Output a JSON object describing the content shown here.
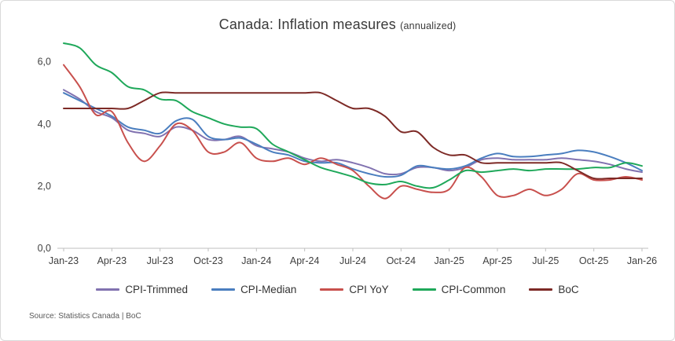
{
  "title": {
    "main": "Canada: Inflation measures",
    "suffix": "(annualized)"
  },
  "source": "Source: Statistics Canada | BoC",
  "chart_data": {
    "type": "line",
    "x": [
      "Jan-23",
      "Feb-23",
      "Mar-23",
      "Apr-23",
      "May-23",
      "Jun-23",
      "Jul-23",
      "Aug-23",
      "Sep-23",
      "Oct-23",
      "Nov-23",
      "Dec-23",
      "Jan-24",
      "Feb-24",
      "Mar-24",
      "Apr-24",
      "May-24",
      "Jun-24",
      "Jul-24",
      "Aug-24",
      "Sep-24",
      "Oct-24",
      "Nov-24",
      "Dec-24",
      "Jan-25",
      "Feb-25",
      "Mar-25",
      "Apr-25",
      "May-25",
      "Jun-25",
      "Jul-25",
      "Aug-25",
      "Sep-25",
      "Oct-25",
      "Nov-25",
      "Dec-25",
      "Jan-26"
    ],
    "x_tick_labels": [
      "Jan-23",
      "Apr-23",
      "Jul-23",
      "Oct-23",
      "Jan-24",
      "Apr-24",
      "Jul-24",
      "Oct-24",
      "Jan-25",
      "Apr-25",
      "Jul-25",
      "Oct-25",
      "Jan-26"
    ],
    "y_ticks": [
      0,
      2,
      4,
      6
    ],
    "y_tick_labels": [
      "0,0",
      "2,0",
      "4,0",
      "6,0"
    ],
    "ylim": [
      0,
      6.7
    ],
    "grid": false,
    "legend_position": "bottom",
    "series": [
      {
        "name": "CPI-Trimmed",
        "color": "#8172b0",
        "values": [
          5.1,
          4.8,
          4.4,
          4.2,
          3.8,
          3.7,
          3.6,
          3.9,
          3.8,
          3.5,
          3.5,
          3.6,
          3.3,
          3.2,
          3.1,
          2.9,
          2.8,
          2.85,
          2.75,
          2.6,
          2.4,
          2.4,
          2.6,
          2.6,
          2.5,
          2.6,
          2.85,
          2.9,
          2.85,
          2.85,
          2.85,
          2.9,
          2.85,
          2.8,
          2.7,
          2.55,
          2.45
        ]
      },
      {
        "name": "CPI-Median",
        "color": "#4a7ebf",
        "values": [
          5.0,
          4.75,
          4.5,
          4.25,
          3.9,
          3.8,
          3.7,
          4.1,
          4.15,
          3.6,
          3.5,
          3.55,
          3.35,
          3.1,
          3.0,
          2.8,
          2.75,
          2.75,
          2.55,
          2.4,
          2.3,
          2.35,
          2.65,
          2.6,
          2.55,
          2.65,
          2.9,
          3.05,
          2.95,
          2.95,
          3.0,
          3.05,
          3.15,
          3.1,
          2.95,
          2.75,
          2.5
        ]
      },
      {
        "name": "CPI YoY",
        "color": "#c8504d",
        "values": [
          5.9,
          5.2,
          4.3,
          4.4,
          3.4,
          2.8,
          3.3,
          4.0,
          3.8,
          3.1,
          3.1,
          3.4,
          2.9,
          2.8,
          2.9,
          2.7,
          2.9,
          2.7,
          2.5,
          2.0,
          1.6,
          2.0,
          1.9,
          1.8,
          1.9,
          2.6,
          2.3,
          1.7,
          1.7,
          1.9,
          1.7,
          1.9,
          2.4,
          2.2,
          2.2,
          2.3,
          2.2
        ]
      },
      {
        "name": "CPI-Common",
        "color": "#1fa85a",
        "values": [
          6.6,
          6.45,
          5.9,
          5.65,
          5.2,
          5.1,
          4.8,
          4.75,
          4.4,
          4.2,
          4.0,
          3.9,
          3.85,
          3.35,
          3.1,
          2.85,
          2.6,
          2.45,
          2.3,
          2.1,
          2.05,
          2.15,
          2.0,
          1.95,
          2.2,
          2.5,
          2.45,
          2.5,
          2.55,
          2.5,
          2.55,
          2.55,
          2.55,
          2.6,
          2.6,
          2.75,
          2.65
        ]
      },
      {
        "name": "BoC",
        "color": "#7d2a26",
        "values": [
          4.5,
          4.5,
          4.5,
          4.5,
          4.5,
          4.75,
          5.0,
          5.0,
          5.0,
          5.0,
          5.0,
          5.0,
          5.0,
          5.0,
          5.0,
          5.0,
          5.0,
          4.75,
          4.5,
          4.5,
          4.25,
          3.75,
          3.75,
          3.25,
          3.0,
          3.0,
          2.75,
          2.75,
          2.75,
          2.75,
          2.75,
          2.75,
          2.5,
          2.25,
          2.25,
          2.25,
          2.25
        ]
      }
    ]
  }
}
